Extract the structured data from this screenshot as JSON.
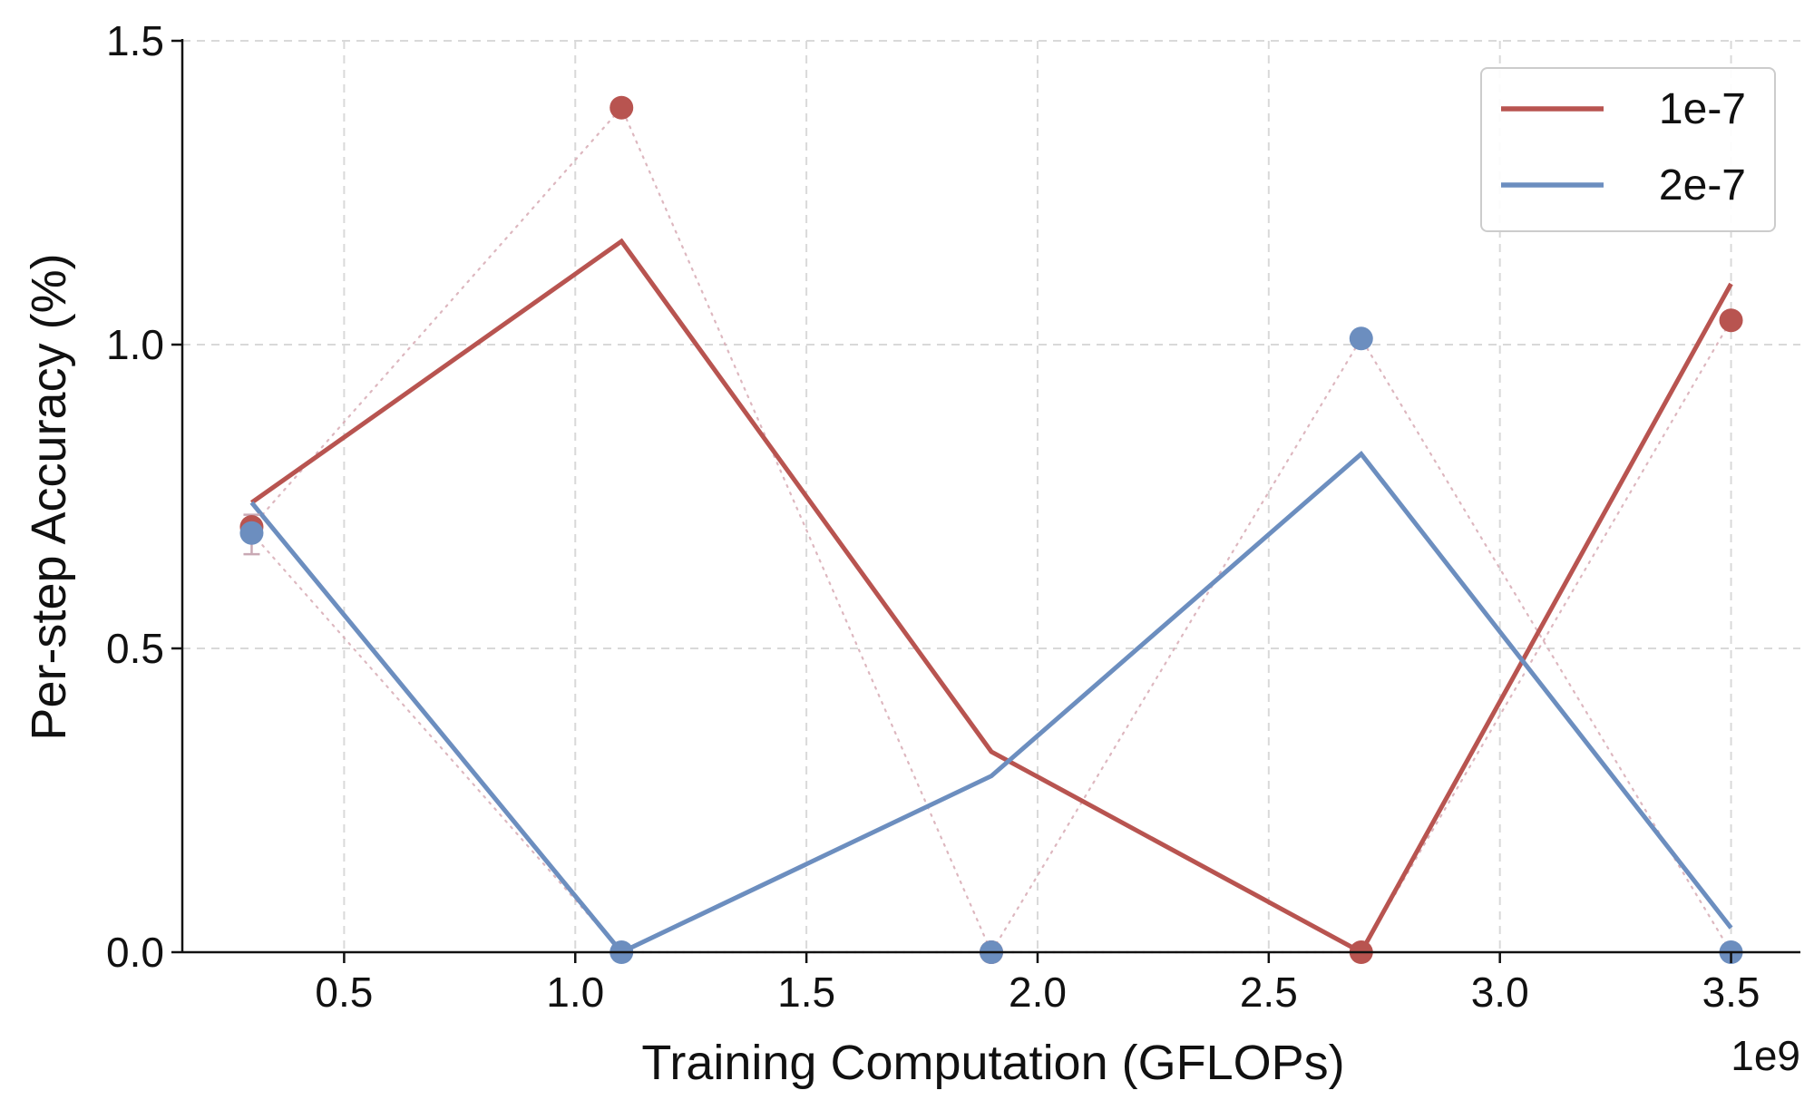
{
  "chart_data": {
    "type": "line",
    "xlabel": "Training Computation (GFLOPs)",
    "ylabel": "Per-step Accuracy (%)",
    "x_offset_label": "1e9",
    "xlim": [
      0.15,
      3.65
    ],
    "ylim": [
      0.0,
      1.5
    ],
    "xticks": [
      "0.5",
      "1.0",
      "1.5",
      "2.0",
      "2.5",
      "3.0",
      "3.5"
    ],
    "yticks": [
      "0.0",
      "0.5",
      "1.0",
      "1.5"
    ],
    "grid": true,
    "legend_position": "top-right",
    "series": [
      {
        "name": "1e-7",
        "color": "#b85450",
        "x": [
          0.3,
          1.1,
          1.9,
          2.7,
          3.5
        ],
        "line": [
          0.74,
          1.17,
          0.33,
          0.0,
          1.1
        ],
        "points": [
          0.7,
          1.39,
          0.0,
          0.0,
          1.04
        ]
      },
      {
        "name": "2e-7",
        "color": "#6c8ebf",
        "x": [
          0.3,
          1.1,
          1.9,
          2.7,
          3.5
        ],
        "line": [
          0.74,
          0.0,
          0.29,
          0.82,
          0.04
        ],
        "points": [
          0.69,
          0.0,
          0.0,
          1.01,
          0.0
        ]
      }
    ]
  }
}
